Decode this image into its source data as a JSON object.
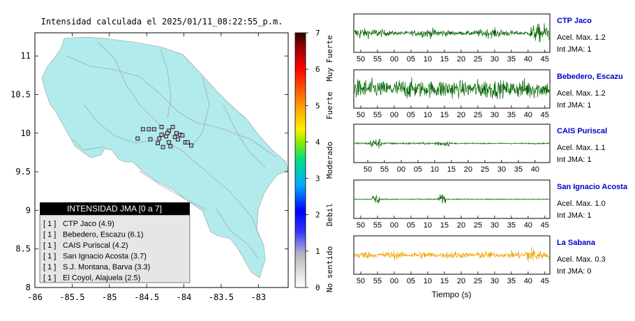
{
  "map": {
    "title": "Intensidad calculada el 2025/01/11_08:22:55_p.m.",
    "xlim": [
      -86,
      -82.6
    ],
    "ylim": [
      8,
      11.3
    ],
    "x_ticks": [
      "-86",
      "-85.5",
      "-85",
      "-84.5",
      "-84",
      "-83.5",
      "-83"
    ],
    "x_tick_values": [
      -86,
      -85.5,
      -85,
      -84.5,
      -84,
      -83.5,
      -83
    ],
    "y_ticks": [
      "8",
      "8.5",
      "9",
      "9.5",
      "10",
      "10.5",
      "11"
    ],
    "y_tick_values": [
      8,
      8.5,
      9,
      9.5,
      10,
      10.5,
      11
    ],
    "land_color": "#b2ebeb",
    "road_color": "#a9a9a9"
  },
  "colorbar": {
    "min": 0,
    "max": 7,
    "ticks": [
      "0",
      "1",
      "2",
      "3",
      "4",
      "5",
      "6",
      "7"
    ],
    "categories": [
      "No sentido",
      "Debil",
      "Moderado",
      "Fuerte",
      "Muy Fuerte"
    ]
  },
  "legend": {
    "header": "INTENSIDAD JMA [0 a 7]",
    "entries": [
      {
        "intensity": "[ 1 ]",
        "station": "CTP Jaco (4.9)"
      },
      {
        "intensity": "[ 1 ]",
        "station": "Bebedero, Escazu (6.1)"
      },
      {
        "intensity": "[ 1 ]",
        "station": "CAIS Puriscal (4.2)"
      },
      {
        "intensity": "[ 1 ]",
        "station": "San Ignacio Acosta (3.7)"
      },
      {
        "intensity": "[ 1 ]",
        "station": "S.J. Montana, Barva (3.3)"
      },
      {
        "intensity": "[ 1 ]",
        "station": "El Coyol, Alajuela (2.5)"
      }
    ]
  },
  "chart_data": [
    {
      "type": "scatter",
      "title": "Intensidad calculada el 2025/01/11_08:22:55_p.m.",
      "xlim": [
        -86,
        -82.6
      ],
      "ylim": [
        8,
        11.3
      ],
      "series": [
        {
          "name": "stations",
          "x": [
            -84.55,
            -84.47,
            -84.4,
            -84.3,
            -84.2,
            -84.15,
            -84.1,
            -84.05,
            -84.45,
            -84.33,
            -84.24,
            -84.12,
            -84.02,
            -84.35,
            -84.28,
            -84.18,
            -84.3,
            -84.22,
            -84.08,
            -83.98,
            -84.62,
            -84.2,
            -83.95,
            -83.9
          ],
          "y": [
            10.05,
            10.05,
            10.05,
            10.08,
            10.03,
            10.08,
            10.0,
            9.98,
            9.92,
            9.93,
            9.96,
            9.95,
            9.97,
            9.87,
            9.82,
            9.83,
            9.98,
            10.0,
            9.92,
            9.88,
            9.93,
            9.88,
            9.88,
            9.84
          ],
          "intensity": [
            1,
            1,
            1,
            1,
            1,
            1,
            1,
            1,
            1,
            1,
            1,
            1,
            1,
            1,
            1,
            1,
            1,
            1,
            1,
            1,
            1,
            1,
            1,
            1
          ]
        }
      ]
    }
  ],
  "waveforms": {
    "x_ticks_a": [
      "50",
      "55",
      "00",
      "05",
      "10",
      "15",
      "20",
      "25",
      "30",
      "35",
      "40",
      "45"
    ],
    "x_ticks_b": [
      "50",
      "55",
      "00",
      "05",
      "10",
      "15",
      "20",
      "25",
      "30",
      "35",
      "40",
      "45"
    ],
    "xlabel": "Tiempo (s)",
    "accel_label": "Acel. Max.",
    "jma_label": "Int JMA:",
    "stations": [
      {
        "name": "CTP Jaco",
        "accel": "1.2",
        "jma": "1",
        "color": "#006400",
        "amp": 0.55,
        "profile": "jaco"
      },
      {
        "name": "Bebedero, Escazu",
        "accel": "1.2",
        "jma": "1",
        "color": "#006400",
        "amp": 0.7,
        "profile": "bebedero"
      },
      {
        "name": "CAIS Puriscal",
        "accel": "1.1",
        "jma": "1",
        "color": "#006400",
        "amp": 0.3,
        "profile": "puriscal"
      },
      {
        "name": "San Ignacio Acosta",
        "accel": "1.0",
        "jma": "1",
        "color": "#006400",
        "amp": 0.3,
        "profile": "acosta"
      },
      {
        "name": "La Sabana",
        "accel": "0.3",
        "jma": "0",
        "color": "#f0a000",
        "amp": 0.55,
        "profile": "sabana"
      }
    ],
    "station_label_color": "#0000cc"
  }
}
